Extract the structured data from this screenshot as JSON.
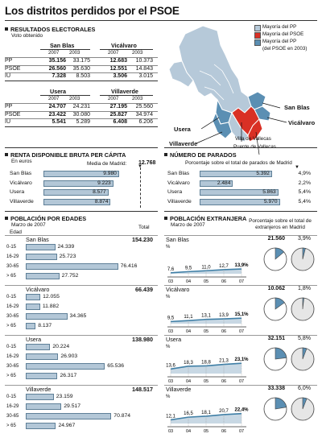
{
  "title": "Los distritos perdidos por el PSOE",
  "colors": {
    "pp": "#b6c9d9",
    "psoe": "#d93025",
    "pp_was_psoe": "#5b8fb3",
    "bar_fill": "#b3c7d7",
    "bar_border": "#5e7f97"
  },
  "resultados": {
    "heading": "RESULTADOS ELECTORALES",
    "subheading": "Voto obtenido",
    "years": [
      "2007",
      "2003"
    ],
    "block1": {
      "districts": [
        "San Blas",
        "Vicálvaro"
      ],
      "rows": [
        {
          "party": "PP",
          "v": [
            "35.156",
            "33.175",
            "12.683",
            "10.373"
          ]
        },
        {
          "party": "PSOE",
          "v": [
            "26.560",
            "35.630",
            "12.551",
            "14.843"
          ]
        },
        {
          "party": "IU",
          "v": [
            "7.328",
            "8.503",
            "3.506",
            "3.015"
          ]
        }
      ]
    },
    "block2": {
      "districts": [
        "Usera",
        "Villaverde"
      ],
      "rows": [
        {
          "party": "PP",
          "v": [
            "24.707",
            "24.231",
            "27.195",
            "25.560"
          ]
        },
        {
          "party": "PSOE",
          "v": [
            "23.422",
            "30.080",
            "25.827",
            "34.974"
          ]
        },
        {
          "party": "IU",
          "v": [
            "5.541",
            "5.289",
            "6.408",
            "6.206"
          ]
        }
      ]
    }
  },
  "map": {
    "legend": [
      {
        "text": "Mayoría del PP",
        "color": "pp"
      },
      {
        "text": "Mayoría del PSOE",
        "color": "psoe"
      },
      {
        "text": "Mayoría del PP",
        "color": "pp_was_psoe"
      },
      {
        "text": "(del PSOE en 2003)",
        "color": ""
      }
    ],
    "labels": {
      "san_blas": "San Blas",
      "vicalvaro": "Vicálvaro",
      "usera": "Usera",
      "villaverde": "Villaverde",
      "villa_vallecas": "Villa de Vallecas",
      "puente_vallecas": "Puente de Vallecas"
    }
  },
  "renta": {
    "heading": "RENTA DISPONIBLE BRUTA PER CÁPITA",
    "unit": "En euros",
    "media_label": "Media de Madrid:",
    "media_value": "12.768",
    "media": 12768,
    "items": [
      {
        "name": "San Blas",
        "value": 9980,
        "label": "9.980"
      },
      {
        "name": "Vicálvaro",
        "value": 9223,
        "label": "9.223"
      },
      {
        "name": "Usera",
        "value": 8577,
        "label": "8.577"
      },
      {
        "name": "Villaverde",
        "value": 8874,
        "label": "8.874"
      }
    ]
  },
  "parados": {
    "heading": "NÚMERO DE PARADOS",
    "subheading": "Porcentaje sobre el total de parados de Madrid",
    "items": [
      {
        "name": "San Blas",
        "value": 5392,
        "label": "5.392",
        "pct": "4,9%"
      },
      {
        "name": "Vicálvaro",
        "value": 2484,
        "label": "2.484",
        "pct": "2,2%"
      },
      {
        "name": "Usera",
        "value": 5863,
        "label": "5.863",
        "pct": "5,4%"
      },
      {
        "name": "Villaverde",
        "value": 5970,
        "label": "5.970",
        "pct": "5,4%"
      }
    ]
  },
  "edades": {
    "heading": "POBLACIÓN POR EDADES",
    "date": "Marzo de 2007",
    "edad_label": "Edad",
    "total_label": "Total",
    "groups": [
      {
        "name": "San Blas",
        "total": "154.230",
        "rows": [
          {
            "age": "0-15",
            "value": 24339,
            "label": "24.339"
          },
          {
            "age": "16-29",
            "value": 25723,
            "label": "25.723"
          },
          {
            "age": "30-65",
            "value": 76416,
            "label": "76.416"
          },
          {
            "age": "> 65",
            "value": 27752,
            "label": "27.752"
          }
        ]
      },
      {
        "name": "Vicálvaro",
        "total": "66.439",
        "rows": [
          {
            "age": "0-15",
            "value": 12055,
            "label": "12.055"
          },
          {
            "age": "16-29",
            "value": 11882,
            "label": "11.882"
          },
          {
            "age": "30-65",
            "value": 34365,
            "label": "34.365"
          },
          {
            "age": "> 65",
            "value": 8137,
            "label": "8.137"
          }
        ]
      },
      {
        "name": "Usera",
        "total": "138.980",
        "rows": [
          {
            "age": "0-15",
            "value": 20224,
            "label": "20.224"
          },
          {
            "age": "16-29",
            "value": 26903,
            "label": "26.903"
          },
          {
            "age": "30-65",
            "value": 65536,
            "label": "65.536"
          },
          {
            "age": "> 65",
            "value": 26317,
            "label": "26.317"
          }
        ]
      },
      {
        "name": "Villaverde",
        "total": "148.517",
        "rows": [
          {
            "age": "0-15",
            "value": 23159,
            "label": "23.159"
          },
          {
            "age": "16-29",
            "value": 29517,
            "label": "29.517"
          },
          {
            "age": "30-65",
            "value": 70874,
            "label": "70.874"
          },
          {
            "age": "> 65",
            "value": 24967,
            "label": "24.967"
          }
        ]
      }
    ]
  },
  "extranjera": {
    "heading": "POBLACIÓN EXTRANJERA",
    "date": "Marzo de 2007",
    "pct_note": "Porcentaje sobre el total de extranjeros en Madrid",
    "pct_symbol": "%",
    "years": [
      "03",
      "04",
      "05",
      "06",
      "07"
    ],
    "groups": [
      {
        "name": "San Blas",
        "total": "21.560",
        "share": "3,9%",
        "share_v": 3.9,
        "series": [
          7.6,
          9.5,
          11.0,
          12.7,
          13.9
        ],
        "labels": [
          "7,6",
          "9,5",
          "11,0",
          "12,7",
          "13,9%"
        ]
      },
      {
        "name": "Vicálvaro",
        "total": "10.062",
        "share": "1,8%",
        "share_v": 1.8,
        "series": [
          9.5,
          11.1,
          13.1,
          13.9,
          15.1
        ],
        "labels": [
          "9,5",
          "11,1",
          "13,1",
          "13,9",
          "15,1%"
        ]
      },
      {
        "name": "Usera",
        "total": "32.151",
        "share": "5,8%",
        "share_v": 5.8,
        "series": [
          13.6,
          18.3,
          18.8,
          21.3,
          23.1
        ],
        "labels": [
          "13,6",
          "18,3",
          "18,8",
          "21,3",
          "23,1%"
        ]
      },
      {
        "name": "Villaverde",
        "total": "33.338",
        "share": "6,0%",
        "share_v": 6.0,
        "series": [
          12.1,
          16.5,
          18.1,
          20.7,
          22.4
        ],
        "labels": [
          "12,1",
          "16,5",
          "18,1",
          "20,7",
          "22,4%"
        ]
      }
    ]
  }
}
